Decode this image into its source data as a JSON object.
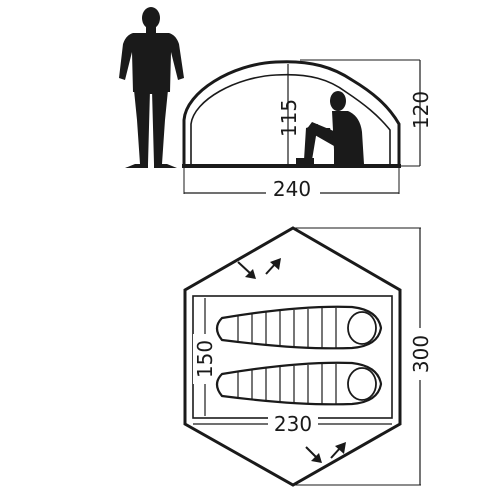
{
  "side_view": {
    "inner_height": "115",
    "outer_height": "120",
    "length": "240"
  },
  "top_view": {
    "inner_width": "150",
    "inner_length": "230",
    "outer_length": "300"
  },
  "colors": {
    "ink": "#1a1a1a",
    "background": "#ffffff"
  },
  "icons": [
    "standing-person-icon",
    "sitting-person-icon",
    "sleeping-bag-icon",
    "entrance-arrows-icon"
  ]
}
